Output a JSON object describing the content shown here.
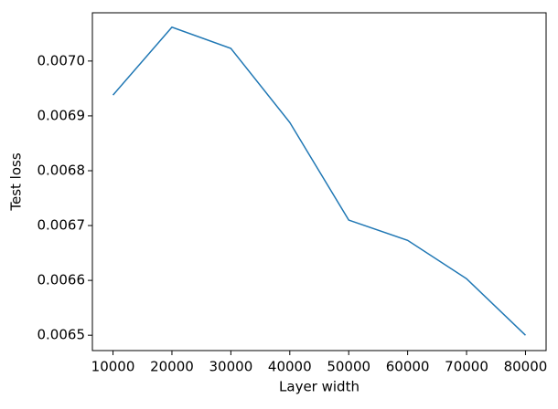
{
  "chart_data": {
    "type": "line",
    "xlabel": "Layer width",
    "ylabel": "Test loss",
    "x": [
      10000,
      20000,
      30000,
      40000,
      50000,
      60000,
      70000,
      80000
    ],
    "series": [
      {
        "color": "#1f77b4",
        "values": [
          0.006938,
          0.0070617,
          0.007023,
          0.006888,
          0.00671,
          0.006673,
          0.006603,
          0.0065
        ]
      }
    ],
    "xlim": [
      6500,
      83500
    ],
    "ylim": [
      0.006472,
      0.007088
    ],
    "xticks": [
      10000,
      20000,
      30000,
      40000,
      50000,
      60000,
      70000,
      80000
    ],
    "yticks": [
      0.0065,
      0.0066,
      0.0067,
      0.0068,
      0.0069,
      {
        "value": 0.007,
        "label": "0.0070"
      }
    ]
  }
}
